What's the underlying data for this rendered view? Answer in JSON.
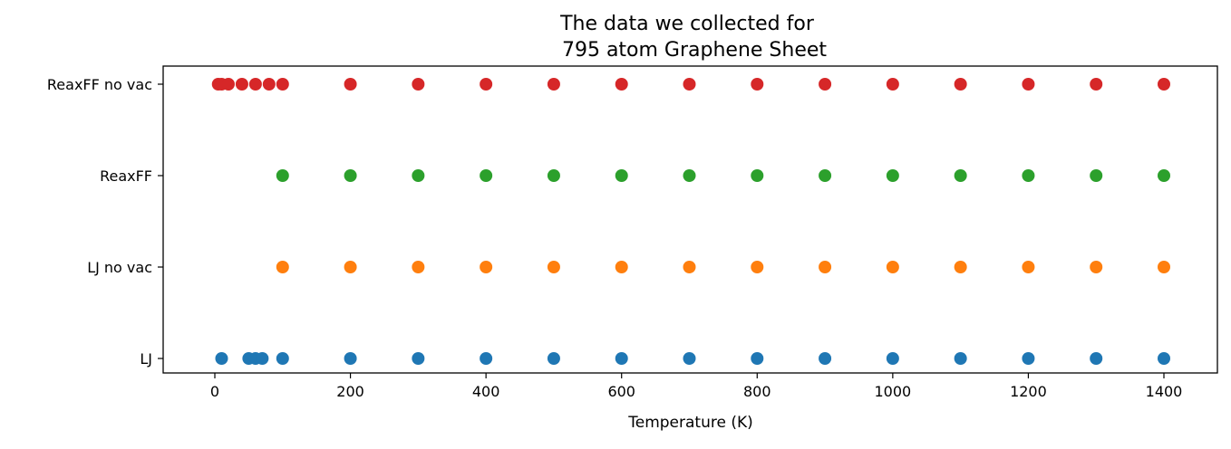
{
  "chart_data": {
    "type": "scatter",
    "title_lines": [
      "The data we collected for",
      "795 atom Graphene Sheet"
    ],
    "xlabel": "Temperature (K)",
    "ylabel": "",
    "xlim": [
      -75,
      1475
    ],
    "xticks": [
      0,
      200,
      400,
      600,
      800,
      1000,
      1200,
      1400
    ],
    "xtick_labels": [
      "0",
      "200",
      "400",
      "600",
      "800",
      "1000",
      "1200",
      "1400"
    ],
    "categories": [
      "LJ",
      "LJ no vac",
      "ReaxFF",
      "ReaxFF no vac"
    ],
    "grid": false,
    "legend": "none",
    "series": [
      {
        "category": "LJ",
        "color": "#1f77b4",
        "x": [
          10,
          50,
          60,
          70,
          100,
          200,
          300,
          400,
          500,
          600,
          700,
          800,
          900,
          1000,
          1100,
          1200,
          1300,
          1400
        ]
      },
      {
        "category": "LJ no vac",
        "color": "#ff7f0e",
        "x": [
          100,
          200,
          300,
          400,
          500,
          600,
          700,
          800,
          900,
          1000,
          1100,
          1200,
          1300,
          1400
        ]
      },
      {
        "category": "ReaxFF",
        "color": "#2ca02c",
        "x": [
          100,
          200,
          300,
          400,
          500,
          600,
          700,
          800,
          900,
          1000,
          1100,
          1200,
          1300,
          1400
        ]
      },
      {
        "category": "ReaxFF no vac",
        "color": "#d62728",
        "x": [
          5,
          10,
          20,
          40,
          60,
          80,
          100,
          200,
          300,
          400,
          500,
          600,
          700,
          800,
          900,
          1000,
          1100,
          1200,
          1300,
          1400
        ]
      }
    ]
  }
}
